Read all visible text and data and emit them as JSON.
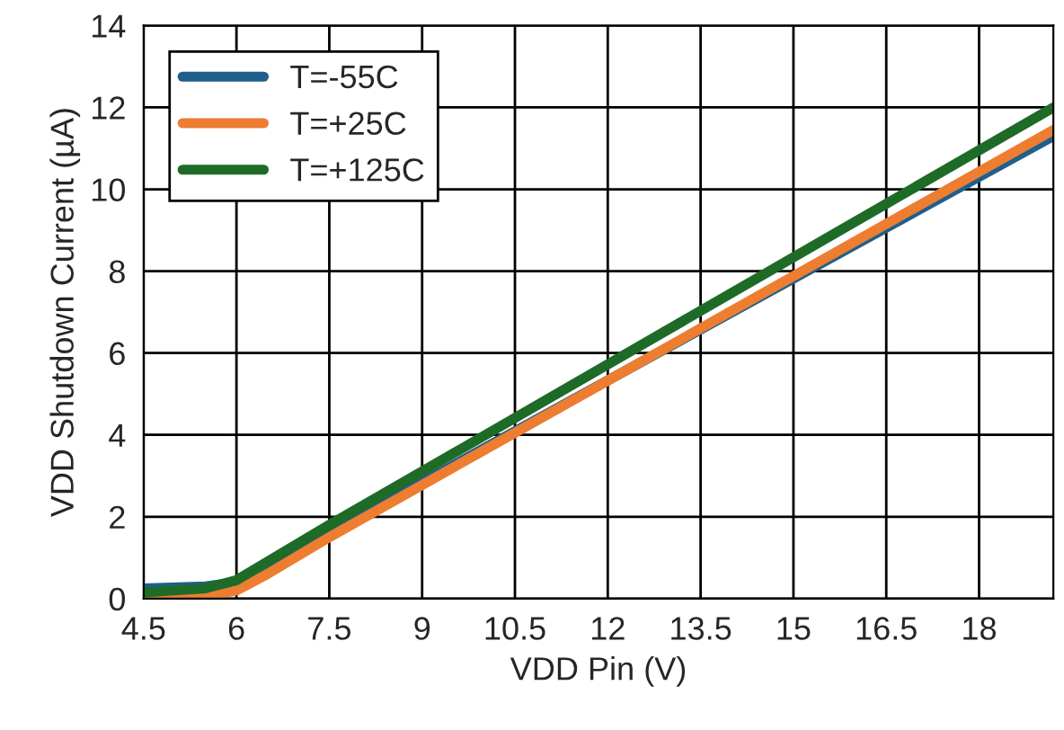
{
  "chart_data": {
    "type": "line",
    "xlabel": "VDD Pin (V)",
    "ylabel": "VDD Shutdown Current (µA)",
    "xlim": [
      4.5,
      19.2
    ],
    "xticks": [
      4.5,
      6,
      7.5,
      9,
      10.5,
      12,
      13.5,
      15,
      16.5,
      18
    ],
    "ylim": [
      0,
      14
    ],
    "yticks": [
      0,
      2,
      4,
      6,
      8,
      10,
      12,
      14
    ],
    "grid": true,
    "legend": "top left",
    "series": [
      {
        "name": "T=-55C",
        "color": "#1f5f8b",
        "x": [
          4.5,
          5.5,
          6,
          6.5,
          7.5,
          19.2
        ],
        "values": [
          0.25,
          0.3,
          0.4,
          0.75,
          1.6,
          11.3
        ]
      },
      {
        "name": "T=+25C",
        "color": "#ed7d31",
        "x": [
          4.5,
          5.5,
          6,
          6.5,
          7.5,
          19.2
        ],
        "values": [
          0.02,
          0.05,
          0.2,
          0.6,
          1.5,
          11.45
        ]
      },
      {
        "name": "T=+125C",
        "color": "#1e6b28",
        "x": [
          4.5,
          5.5,
          6,
          6.5,
          7.5,
          19.2
        ],
        "values": [
          0.15,
          0.25,
          0.45,
          0.9,
          1.8,
          12.0
        ]
      }
    ]
  }
}
